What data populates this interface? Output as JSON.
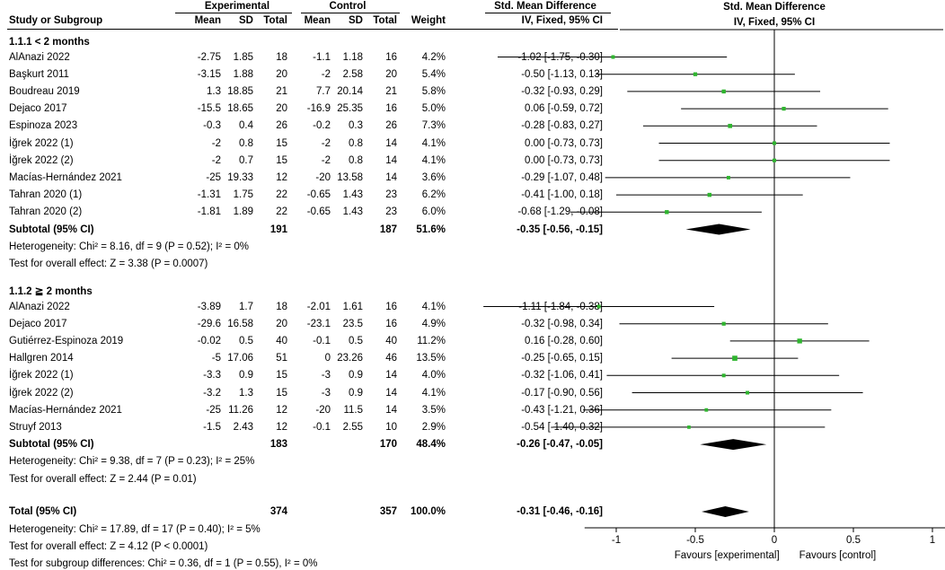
{
  "header": {
    "group1": "Experimental",
    "group2": "Control",
    "smd_col": "Std. Mean Difference",
    "smd_plot": "Std. Mean Difference",
    "cols": {
      "study": "Study or Subgroup",
      "mean1": "Mean",
      "sd1": "SD",
      "total1": "Total",
      "mean2": "Mean",
      "sd2": "SD",
      "total2": "Total",
      "weight": "Weight",
      "ci": "IV, Fixed, 95% CI",
      "ci_plot": "IV, Fixed, 95% CI"
    }
  },
  "subgroups": [
    {
      "title": "1.1.1 < 2 months",
      "studies": [
        {
          "study": "AlAnazi 2022",
          "mean1": "-2.75",
          "sd1": "1.85",
          "n1": "18",
          "mean2": "-1.1",
          "sd2": "1.18",
          "n2": "16",
          "weight": "4.2%",
          "ci": "-1.02 [-1.75, -0.30]"
        },
        {
          "study": "Başkurt 2011",
          "mean1": "-3.15",
          "sd1": "1.88",
          "n1": "20",
          "mean2": "-2",
          "sd2": "2.58",
          "n2": "20",
          "weight": "5.4%",
          "ci": "-0.50 [-1.13, 0.13]"
        },
        {
          "study": "Boudreau 2019",
          "mean1": "1.3",
          "sd1": "18.85",
          "n1": "21",
          "mean2": "7.7",
          "sd2": "20.14",
          "n2": "21",
          "weight": "5.8%",
          "ci": "-0.32 [-0.93, 0.29]"
        },
        {
          "study": "Dejaco 2017",
          "mean1": "-15.5",
          "sd1": "18.65",
          "n1": "20",
          "mean2": "-16.9",
          "sd2": "25.35",
          "n2": "16",
          "weight": "5.0%",
          "ci": "0.06 [-0.59, 0.72]"
        },
        {
          "study": "Espinoza 2023",
          "mean1": "-0.3",
          "sd1": "0.4",
          "n1": "26",
          "mean2": "-0.2",
          "sd2": "0.3",
          "n2": "26",
          "weight": "7.3%",
          "ci": "-0.28 [-0.83, 0.27]"
        },
        {
          "study": "İğrek 2022 (1)",
          "mean1": "-2",
          "sd1": "0.8",
          "n1": "15",
          "mean2": "-2",
          "sd2": "0.8",
          "n2": "14",
          "weight": "4.1%",
          "ci": "0.00 [-0.73, 0.73]"
        },
        {
          "study": "İğrek 2022 (2)",
          "mean1": "-2",
          "sd1": "0.7",
          "n1": "15",
          "mean2": "-2",
          "sd2": "0.8",
          "n2": "14",
          "weight": "4.1%",
          "ci": "0.00 [-0.73, 0.73]"
        },
        {
          "study": "Macías-Hernández 2021",
          "mean1": "-25",
          "sd1": "19.33",
          "n1": "12",
          "mean2": "-20",
          "sd2": "13.58",
          "n2": "14",
          "weight": "3.6%",
          "ci": "-0.29 [-1.07, 0.48]"
        },
        {
          "study": "Tahran 2020 (1)",
          "mean1": "-1.31",
          "sd1": "1.75",
          "n1": "22",
          "mean2": "-0.65",
          "sd2": "1.43",
          "n2": "23",
          "weight": "6.2%",
          "ci": "-0.41 [-1.00, 0.18]"
        },
        {
          "study": "Tahran 2020 (2)",
          "mean1": "-1.81",
          "sd1": "1.89",
          "n1": "22",
          "mean2": "-0.65",
          "sd2": "1.43",
          "n2": "23",
          "weight": "6.0%",
          "ci": "-0.68 [-1.29, -0.08]"
        }
      ],
      "subtotal": {
        "label": "Subtotal (95% CI)",
        "n1": "191",
        "n2": "187",
        "weight": "51.6%",
        "ci": "-0.35 [-0.56, -0.15]"
      },
      "heterogeneity": "Heterogeneity: Chi² = 8.16, df = 9 (P = 0.52); I² = 0%",
      "overall": "Test for overall effect: Z = 3.38 (P = 0.0007)"
    },
    {
      "title": "1.1.2 ≧ 2 months",
      "studies": [
        {
          "study": "AlAnazi 2022",
          "mean1": "-3.89",
          "sd1": "1.7",
          "n1": "18",
          "mean2": "-2.01",
          "sd2": "1.61",
          "n2": "16",
          "weight": "4.1%",
          "ci": "-1.11 [-1.84, -0.38]"
        },
        {
          "study": "Dejaco 2017",
          "mean1": "-29.6",
          "sd1": "16.58",
          "n1": "20",
          "mean2": "-23.1",
          "sd2": "23.5",
          "n2": "16",
          "weight": "4.9%",
          "ci": "-0.32 [-0.98, 0.34]"
        },
        {
          "study": "Gutiérrez-Espinoza 2019",
          "mean1": "-0.02",
          "sd1": "0.5",
          "n1": "40",
          "mean2": "-0.1",
          "sd2": "0.5",
          "n2": "40",
          "weight": "11.2%",
          "ci": "0.16 [-0.28, 0.60]"
        },
        {
          "study": "Hallgren 2014",
          "mean1": "-5",
          "sd1": "17.06",
          "n1": "51",
          "mean2": "0",
          "sd2": "23.26",
          "n2": "46",
          "weight": "13.5%",
          "ci": "-0.25 [-0.65, 0.15]"
        },
        {
          "study": "İğrek 2022 (1)",
          "mean1": "-3.3",
          "sd1": "0.9",
          "n1": "15",
          "mean2": "-3",
          "sd2": "0.9",
          "n2": "14",
          "weight": "4.0%",
          "ci": "-0.32 [-1.06, 0.41]"
        },
        {
          "study": "İğrek 2022 (2)",
          "mean1": "-3.2",
          "sd1": "1.3",
          "n1": "15",
          "mean2": "-3",
          "sd2": "0.9",
          "n2": "14",
          "weight": "4.1%",
          "ci": "-0.17 [-0.90, 0.56]"
        },
        {
          "study": "Macías-Hernández 2021",
          "mean1": "-25",
          "sd1": "11.26",
          "n1": "12",
          "mean2": "-20",
          "sd2": "11.5",
          "n2": "14",
          "weight": "3.5%",
          "ci": "-0.43 [-1.21, 0.36]"
        },
        {
          "study": "Struyf 2013",
          "mean1": "-1.5",
          "sd1": "2.43",
          "n1": "12",
          "mean2": "-0.1",
          "sd2": "2.55",
          "n2": "10",
          "weight": "2.9%",
          "ci": "-0.54 [-1.40, 0.32]"
        }
      ],
      "subtotal": {
        "label": "Subtotal (95% CI)",
        "n1": "183",
        "n2": "170",
        "weight": "48.4%",
        "ci": "-0.26 [-0.47, -0.05]"
      },
      "heterogeneity": "Heterogeneity: Chi² = 9.38, df = 7 (P = 0.23); I² = 25%",
      "overall": "Test for overall effect: Z = 2.44 (P = 0.01)"
    }
  ],
  "total": {
    "label": "Total (95% CI)",
    "n1": "374",
    "n2": "357",
    "weight": "100.0%",
    "ci": "-0.31 [-0.46, -0.16]",
    "heterogeneity": "Heterogeneity: Chi² = 17.89, df = 17 (P = 0.40); I² = 5%",
    "overall": "Test for overall effect: Z = 4.12 (P < 0.0001)",
    "subgroup_diff": "Test for subgroup differences: Chi² = 0.36, df = 1 (P = 0.55), I² = 0%"
  },
  "colors": {
    "marker": "#2fb52f",
    "diamond": "#000000",
    "line": "#000000"
  },
  "chart_data": {
    "type": "forest",
    "title": "Std. Mean Difference",
    "subtitle": "IV, Fixed, 95% CI",
    "xlim": [
      -1.2,
      1.2
    ],
    "ticks": [
      "-1",
      "-0.5",
      "0",
      "0.5",
      "1"
    ],
    "tick_values": [
      -1,
      -0.5,
      0,
      0.5,
      1
    ],
    "favours_left": "Favours [experimental]",
    "favours_right": "Favours [control]",
    "rows": [
      {
        "label": "AlAnazi 2022",
        "est": -1.02,
        "lo": -1.75,
        "hi": -0.3,
        "w": 4.2
      },
      {
        "label": "Başkurt 2011",
        "est": -0.5,
        "lo": -1.13,
        "hi": 0.13,
        "w": 5.4
      },
      {
        "label": "Boudreau 2019",
        "est": -0.32,
        "lo": -0.93,
        "hi": 0.29,
        "w": 5.8
      },
      {
        "label": "Dejaco 2017",
        "est": 0.06,
        "lo": -0.59,
        "hi": 0.72,
        "w": 5.0
      },
      {
        "label": "Espinoza 2023",
        "est": -0.28,
        "lo": -0.83,
        "hi": 0.27,
        "w": 7.3
      },
      {
        "label": "İğrek 2022 (1)",
        "est": 0.0,
        "lo": -0.73,
        "hi": 0.73,
        "w": 4.1
      },
      {
        "label": "İğrek 2022 (2)",
        "est": 0.0,
        "lo": -0.73,
        "hi": 0.73,
        "w": 4.1
      },
      {
        "label": "Macías-Hernández 2021",
        "est": -0.29,
        "lo": -1.07,
        "hi": 0.48,
        "w": 3.6
      },
      {
        "label": "Tahran 2020 (1)",
        "est": -0.41,
        "lo": -1.0,
        "hi": 0.18,
        "w": 6.2
      },
      {
        "label": "Tahran 2020 (2)",
        "est": -0.68,
        "lo": -1.29,
        "hi": -0.08,
        "w": 6.0
      },
      {
        "label": "Subtotal 1.1.1",
        "est": -0.35,
        "lo": -0.56,
        "hi": -0.15,
        "diamond": true
      },
      {
        "label": "AlAnazi 2022",
        "est": -1.11,
        "lo": -1.84,
        "hi": -0.38,
        "w": 4.1
      },
      {
        "label": "Dejaco 2017",
        "est": -0.32,
        "lo": -0.98,
        "hi": 0.34,
        "w": 4.9
      },
      {
        "label": "Gutiérrez-Espinoza 2019",
        "est": 0.16,
        "lo": -0.28,
        "hi": 0.6,
        "w": 11.2
      },
      {
        "label": "Hallgren 2014",
        "est": -0.25,
        "lo": -0.65,
        "hi": 0.15,
        "w": 13.5
      },
      {
        "label": "İğrek 2022 (1)",
        "est": -0.32,
        "lo": -1.06,
        "hi": 0.41,
        "w": 4.0
      },
      {
        "label": "İğrek 2022 (2)",
        "est": -0.17,
        "lo": -0.9,
        "hi": 0.56,
        "w": 4.1
      },
      {
        "label": "Macías-Hernández 2021",
        "est": -0.43,
        "lo": -1.21,
        "hi": 0.36,
        "w": 3.5
      },
      {
        "label": "Struyf 2013",
        "est": -0.54,
        "lo": -1.4,
        "hi": 0.32,
        "w": 2.9
      },
      {
        "label": "Subtotal 1.1.2",
        "est": -0.26,
        "lo": -0.47,
        "hi": -0.05,
        "diamond": true
      },
      {
        "label": "Total",
        "est": -0.31,
        "lo": -0.46,
        "hi": -0.16,
        "diamond": true
      }
    ]
  }
}
